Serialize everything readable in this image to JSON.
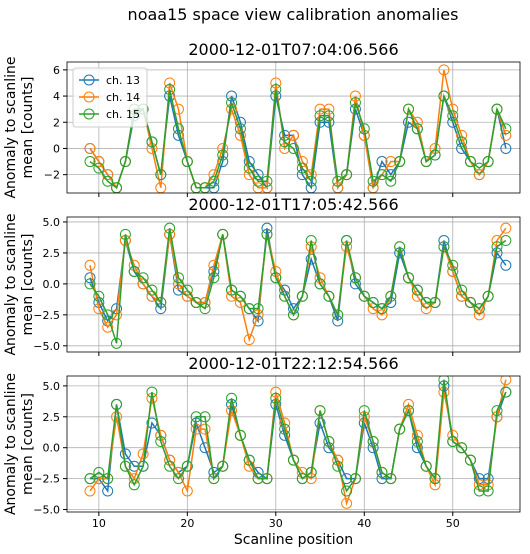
{
  "title": "noaa15 space view calibration anomalies",
  "chart_data": [
    {
      "type": "line",
      "title": "2000-12-01T07:04:06.566",
      "ylabel": [
        "Anomaly to scanline",
        "mean [counts]"
      ],
      "x": [
        9,
        10,
        11,
        12,
        13,
        14,
        15,
        16,
        17,
        18,
        19,
        20,
        21,
        22,
        23,
        24,
        25,
        26,
        27,
        28,
        29,
        30,
        31,
        32,
        33,
        34,
        35,
        36,
        37,
        38,
        39,
        40,
        41,
        42,
        43,
        44,
        45,
        46,
        47,
        48,
        49,
        50,
        51,
        52,
        53,
        54,
        55,
        56
      ],
      "series": [
        {
          "name": "ch. 13",
          "color": "#1f77b4",
          "values": [
            0,
            -1,
            -2,
            -3,
            -1,
            2.5,
            3,
            0.5,
            -2,
            4,
            1,
            -1,
            -3,
            -3,
            -3,
            -1,
            4,
            2,
            -1,
            -2,
            -3,
            4,
            1,
            1,
            -2,
            -3,
            2,
            2,
            -3,
            -2,
            3,
            1,
            -3,
            -1,
            -2,
            -1,
            2,
            1.5,
            -1,
            -0.5,
            4,
            2,
            0,
            -1,
            -2,
            -1,
            3,
            0
          ]
        },
        {
          "name": "ch. 14",
          "color": "#ff7f0e",
          "values": [
            0,
            -1,
            -2,
            -3,
            -1,
            3,
            3,
            0,
            -3,
            5,
            3,
            -1,
            -3,
            -3,
            -2,
            0,
            3,
            1,
            -2,
            -3,
            -3,
            5,
            0,
            1,
            -1,
            -2,
            3,
            3,
            -3,
            -2,
            4,
            1,
            -3,
            -2,
            -1,
            -1,
            3,
            2,
            -1,
            0,
            6,
            3,
            1,
            -1,
            -2,
            -1,
            3,
            1
          ]
        },
        {
          "name": "ch. 15",
          "color": "#2ca02c",
          "values": [
            -1,
            -1.5,
            -2.5,
            -3,
            -1,
            3,
            3,
            0.5,
            -2,
            4.5,
            1.5,
            -1,
            -3,
            -3,
            -2.5,
            -0.5,
            3.5,
            1.5,
            -1.5,
            -2.5,
            -2.5,
            4.5,
            0.5,
            0,
            -1.5,
            -2.5,
            2.5,
            2.5,
            -2.5,
            -2,
            3.5,
            1.5,
            -2.5,
            -2,
            -2.5,
            -1,
            3,
            1.5,
            -1,
            -0.5,
            4,
            2.5,
            0.5,
            -1,
            -1.5,
            -1,
            3,
            1.5
          ]
        }
      ],
      "xlim": [
        6.4,
        57.6
      ],
      "xticks": [
        10,
        20,
        30,
        40,
        50
      ],
      "ylim": [
        -3.4,
        6.6
      ],
      "yticks": [
        {
          "value": -2,
          "label": "−2"
        },
        0,
        2,
        4,
        6
      ],
      "grid": true,
      "legend": "upper left"
    },
    {
      "type": "line",
      "title": "2000-12-01T17:05:42.566",
      "ylabel": [
        "Anomaly to scanline",
        "mean [counts]"
      ],
      "x": [
        9,
        10,
        11,
        12,
        13,
        14,
        15,
        16,
        17,
        18,
        19,
        20,
        21,
        22,
        23,
        24,
        25,
        26,
        27,
        28,
        29,
        30,
        31,
        32,
        33,
        34,
        35,
        36,
        37,
        38,
        39,
        40,
        41,
        42,
        43,
        44,
        45,
        46,
        47,
        48,
        49,
        50,
        51,
        52,
        53,
        54,
        55,
        56
      ],
      "series": [
        {
          "name": "ch. 13",
          "color": "#1f77b4",
          "values": [
            0.5,
            -1.5,
            -3,
            -2,
            3.5,
            1,
            0,
            -1,
            -2,
            4,
            -0.5,
            -1,
            -1.5,
            -1.5,
            1,
            4,
            -0.5,
            -1,
            -2,
            -3,
            4.5,
            0.5,
            -0.5,
            -2,
            -1,
            2,
            0,
            -1,
            -3,
            3.5,
            0,
            -1,
            -1.5,
            -2,
            -1.5,
            2.5,
            0.5,
            -0.5,
            -1.5,
            -1.5,
            3.5,
            1,
            -1,
            -1.5,
            -2,
            -1,
            2.5,
            1.5
          ]
        },
        {
          "name": "ch. 14",
          "color": "#ff7f0e",
          "values": [
            1.5,
            -2,
            -3.5,
            -2.5,
            3.5,
            1.5,
            0,
            -1,
            -1.5,
            4,
            0,
            -1,
            -1.5,
            -1.5,
            1.5,
            4,
            -1,
            -1.5,
            -4.5,
            -2.5,
            4,
            1,
            -1,
            -2.5,
            -1,
            3,
            0.5,
            -1,
            -2.5,
            3,
            0.5,
            -1,
            -2,
            -2.5,
            -1,
            3,
            0.5,
            -1,
            -2,
            -1.5,
            3,
            1,
            -1,
            -1.5,
            -2.5,
            -1,
            3.5,
            4.5
          ]
        },
        {
          "name": "ch. 15",
          "color": "#2ca02c",
          "values": [
            0,
            -1,
            -2.5,
            -4.8,
            4,
            1,
            0.5,
            -0.5,
            -1.5,
            4.5,
            0.5,
            -0.5,
            -1.5,
            -2,
            0.5,
            4,
            -0.5,
            -1,
            -2,
            -2,
            4,
            0.5,
            -1,
            -2.5,
            -1,
            3.5,
            0,
            -1,
            -2.5,
            3.5,
            0.5,
            -1,
            -1.5,
            -2,
            -1,
            3,
            0.5,
            -0.5,
            -1.5,
            -1.5,
            3,
            1.5,
            -0.5,
            -1.5,
            -2,
            -1,
            3,
            3.5
          ]
        }
      ],
      "xlim": [
        6.4,
        57.6
      ],
      "xticks": [
        10,
        20,
        30,
        40,
        50
      ],
      "ylim": [
        -5.5,
        5.4
      ],
      "yticks": [
        {
          "value": -5,
          "label": "−5.0"
        },
        {
          "value": -2.5,
          "label": "−2.5"
        },
        {
          "value": 0,
          "label": "0.0"
        },
        {
          "value": 2.5,
          "label": "2.5"
        },
        {
          "value": 5,
          "label": "5.0"
        }
      ],
      "grid": true
    },
    {
      "type": "line",
      "title": "2000-12-01T22:12:54.566",
      "ylabel": [
        "Anomaly to scanline",
        "mean [counts]"
      ],
      "xlabel": "Scanline position",
      "x": [
        9,
        10,
        11,
        12,
        13,
        14,
        15,
        16,
        17,
        18,
        19,
        20,
        21,
        22,
        23,
        24,
        25,
        26,
        27,
        28,
        29,
        30,
        31,
        32,
        33,
        34,
        35,
        36,
        37,
        38,
        39,
        40,
        41,
        42,
        43,
        44,
        45,
        46,
        47,
        48,
        49,
        50,
        51,
        52,
        53,
        54,
        55,
        56
      ],
      "series": [
        {
          "name": "ch. 13",
          "color": "#1f77b4",
          "values": [
            -2.5,
            -2.5,
            -3.5,
            3.5,
            -0.5,
            -1.5,
            -1.5,
            2,
            1,
            -1,
            -2,
            -1.5,
            2,
            0,
            -2,
            -1.5,
            3.5,
            1,
            -1,
            -2,
            -2.5,
            3.5,
            1,
            -1,
            -2.5,
            -2,
            2,
            0,
            -1,
            -2.5,
            -2.5,
            2,
            0,
            -2.5,
            -2.5,
            1.5,
            3,
            0,
            -1.5,
            -2.5,
            5,
            0.5,
            0,
            -1,
            -2.5,
            -2.5,
            2.5,
            4.5
          ]
        },
        {
          "name": "ch. 14",
          "color": "#ff7f0e",
          "values": [
            -3.5,
            -2.5,
            -2.5,
            2.5,
            -1.5,
            -2.5,
            -0.5,
            4,
            1,
            -1,
            -2,
            -3.5,
            1.5,
            1.5,
            -2.5,
            -1.5,
            3,
            1,
            -1.5,
            -2.5,
            -2.5,
            4.5,
            2,
            -1,
            -2,
            -2.5,
            3,
            0.5,
            -1,
            -4.5,
            -2.5,
            2.5,
            0.5,
            -2,
            -2.5,
            1.5,
            3.5,
            1,
            -1.5,
            -3,
            4.5,
            1,
            0,
            -1,
            -3,
            -3,
            2.5,
            5.5
          ]
        },
        {
          "name": "ch. 15",
          "color": "#2ca02c",
          "values": [
            -2.5,
            -2,
            -2.5,
            3.5,
            -1.5,
            -3,
            -1.5,
            4.5,
            0.5,
            -1.5,
            -2.5,
            -1.5,
            2.5,
            2.5,
            -2.5,
            -1.5,
            4,
            1,
            -1,
            -2.5,
            -2.5,
            4,
            1.5,
            -1,
            -2.5,
            -2,
            3,
            0.5,
            -1.5,
            -3.5,
            -2.5,
            3,
            0.5,
            -2,
            -2.5,
            1.5,
            3,
            0.5,
            -1.5,
            -2.5,
            5.5,
            0.5,
            0,
            -1,
            -3.5,
            -3.5,
            3,
            4.5
          ]
        }
      ],
      "xlim": [
        6.4,
        57.6
      ],
      "xticks": [
        10,
        20,
        30,
        40,
        50
      ],
      "ylim": [
        -5.2,
        5.8
      ],
      "yticks": [
        {
          "value": -5,
          "label": "−5.0"
        },
        {
          "value": -2.5,
          "label": "−2.5"
        },
        {
          "value": 0,
          "label": "0.0"
        },
        {
          "value": 2.5,
          "label": "2.5"
        },
        {
          "value": 5,
          "label": "5.0"
        }
      ],
      "grid": true
    }
  ]
}
